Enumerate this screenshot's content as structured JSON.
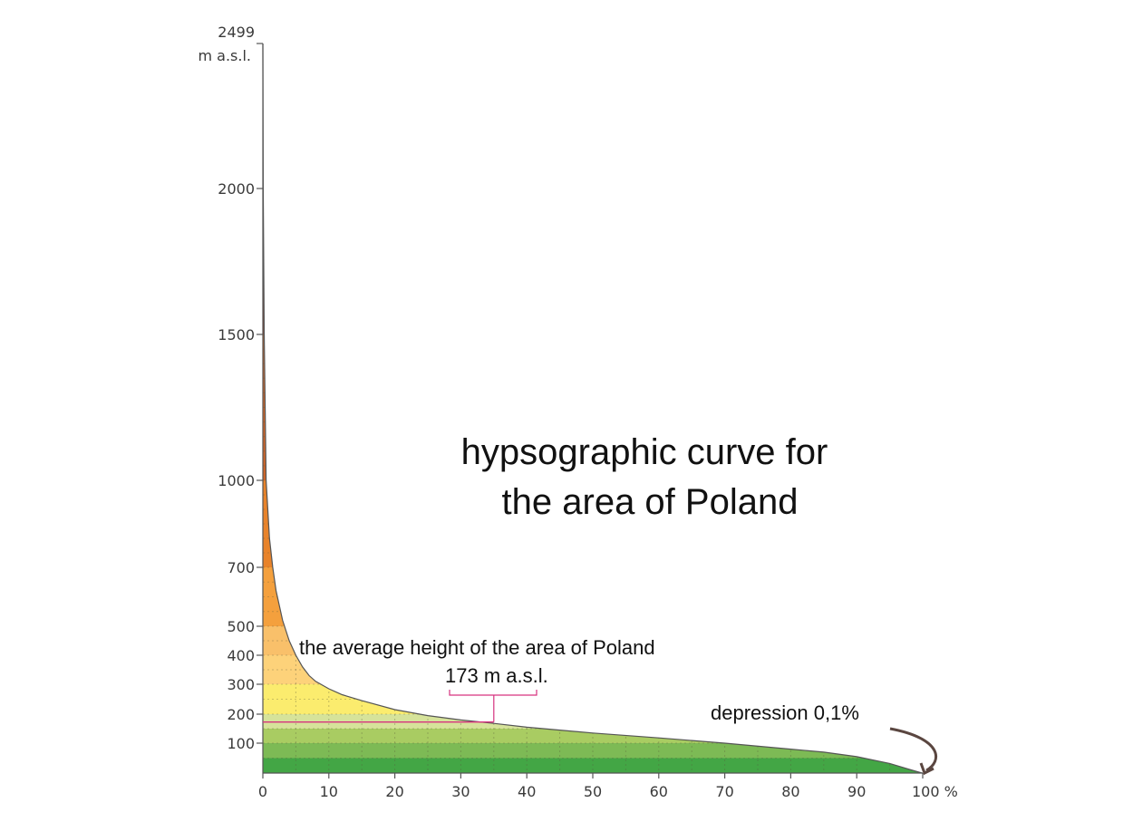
{
  "chart_data": {
    "type": "area",
    "title_line1": "hypsographic curve for",
    "title_line2": "the area of Poland",
    "y_unit_top": "2499",
    "y_unit_label": "m a.s.l.",
    "xlim": [
      0,
      100
    ],
    "ylim": [
      0,
      2499
    ],
    "x_ticks": [
      0,
      10,
      20,
      30,
      40,
      50,
      60,
      70,
      80,
      90,
      100
    ],
    "x_tick_labels": [
      "0",
      "10",
      "20",
      "30",
      "40",
      "50",
      "60",
      "70",
      "80",
      "90",
      "100 %"
    ],
    "y_ticks": [
      100,
      200,
      300,
      400,
      500,
      700,
      1000,
      1500,
      2000
    ],
    "y_tick_labels": [
      "100",
      "200",
      "300",
      "400",
      "500",
      "700",
      "1000",
      "1500",
      "2000"
    ],
    "curve": {
      "x": [
        0,
        0.05,
        0.2,
        0.5,
        1,
        1.5,
        2,
        3,
        4,
        5,
        6,
        7,
        8,
        10,
        12,
        15,
        20,
        25,
        30,
        35,
        40,
        50,
        60,
        70,
        80,
        85,
        90,
        95,
        98,
        99.9,
        100
      ],
      "y": [
        2499,
        2000,
        1500,
        1000,
        800,
        700,
        620,
        520,
        450,
        400,
        360,
        330,
        310,
        285,
        265,
        245,
        215,
        195,
        180,
        168,
        155,
        135,
        118,
        100,
        80,
        70,
        55,
        32,
        12,
        0,
        0
      ]
    },
    "elevation_bands": [
      {
        "from": 0,
        "to": 50,
        "color": "#43a645"
      },
      {
        "from": 50,
        "to": 100,
        "color": "#7dba55"
      },
      {
        "from": 100,
        "to": 150,
        "color": "#a9cc62"
      },
      {
        "from": 150,
        "to": 200,
        "color": "#d6e39a"
      },
      {
        "from": 200,
        "to": 300,
        "color": "#fbec6e"
      },
      {
        "from": 300,
        "to": 400,
        "color": "#fdd27a"
      },
      {
        "from": 400,
        "to": 500,
        "color": "#f9c06a"
      },
      {
        "from": 500,
        "to": 700,
        "color": "#f4a03d"
      },
      {
        "from": 700,
        "to": 1000,
        "color": "#e8832a"
      },
      {
        "from": 1000,
        "to": 1500,
        "color": "#d06628"
      },
      {
        "from": 1500,
        "to": 2499,
        "color": "#a8442a"
      }
    ],
    "average": {
      "value": 173,
      "at_x": 35,
      "label": "the average height of the area of Poland",
      "value_label": "173 m a.s.l.",
      "color": "#d6337f"
    },
    "depression": {
      "label": "depression 0,1%"
    },
    "grid": true
  }
}
